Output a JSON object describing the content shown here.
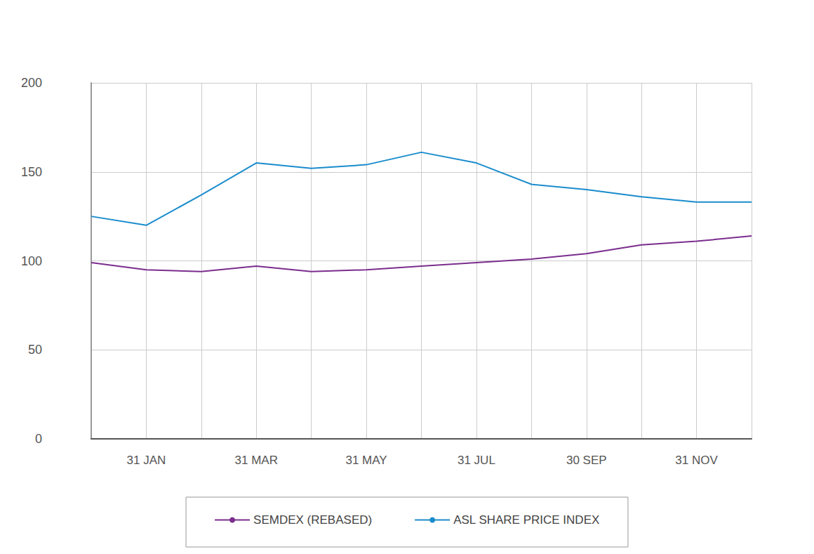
{
  "chart_data": {
    "type": "line",
    "categories": [
      null,
      "31 JAN",
      null,
      "31 MAR",
      null,
      "31 MAY",
      null,
      "31 JUL",
      null,
      "30 SEP",
      null,
      "31 NOV",
      null
    ],
    "series": [
      {
        "name": "SEMDEX (REBASED)",
        "color": "#7b2d8e",
        "values": [
          99,
          95,
          94,
          97,
          94,
          95,
          97,
          99,
          101,
          104,
          109,
          111,
          114
        ]
      },
      {
        "name": "ASL SHARE PRICE INDEX",
        "color": "#1a8ccc",
        "values": [
          125,
          120,
          137,
          155,
          152,
          154,
          161,
          155,
          143,
          140,
          136,
          133,
          133
        ]
      }
    ],
    "ylim": [
      0,
      200
    ],
    "yticks": [
      0,
      50,
      100,
      150,
      200
    ],
    "grid": true,
    "legend": "bottom"
  }
}
